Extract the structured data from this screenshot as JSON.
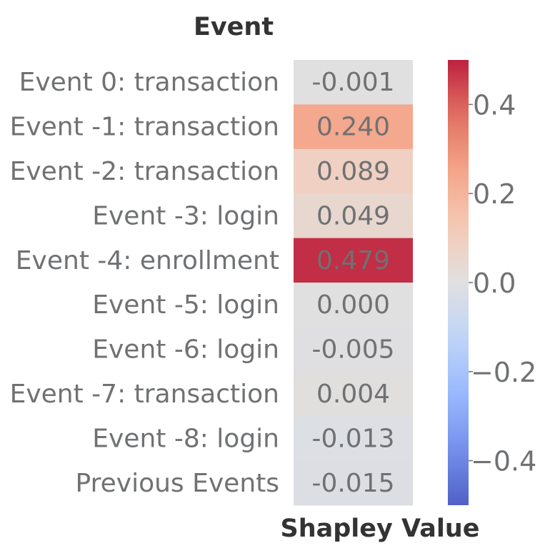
{
  "chart_data": {
    "type": "heatmap",
    "title": "Event",
    "xlabel": "Shapley Value",
    "ylabel": "",
    "rows": [
      {
        "label": "Event 0: transaction",
        "value": -0.001,
        "display": "-0.001"
      },
      {
        "label": "Event -1: transaction",
        "value": 0.24,
        "display": "0.240"
      },
      {
        "label": "Event -2: transaction",
        "value": 0.089,
        "display": "0.089"
      },
      {
        "label": "Event -3: login",
        "value": 0.049,
        "display": "0.049"
      },
      {
        "label": "Event -4: enrollment",
        "value": 0.479,
        "display": "0.479"
      },
      {
        "label": "Event -5: login",
        "value": 0.0,
        "display": "0.000"
      },
      {
        "label": "Event -6: login",
        "value": -0.005,
        "display": "-0.005"
      },
      {
        "label": "Event -7: transaction",
        "value": 0.004,
        "display": "0.004"
      },
      {
        "label": "Event -8: login",
        "value": -0.013,
        "display": "-0.013"
      },
      {
        "label": "Previous Events",
        "value": -0.015,
        "display": "-0.015"
      }
    ],
    "colorbar": {
      "colormap": "coolwarm",
      "range": [
        -0.5,
        0.5
      ],
      "ticks": [
        {
          "value": 0.4,
          "label": "0.4"
        },
        {
          "value": 0.2,
          "label": "0.2"
        },
        {
          "value": 0.0,
          "label": "0.0"
        },
        {
          "value": -0.2,
          "label": "−0.2"
        },
        {
          "value": -0.4,
          "label": "−0.4"
        }
      ]
    },
    "colors": {
      "low": "#5a7fd1",
      "mid": "#efefef",
      "high": "#cd6650"
    }
  }
}
